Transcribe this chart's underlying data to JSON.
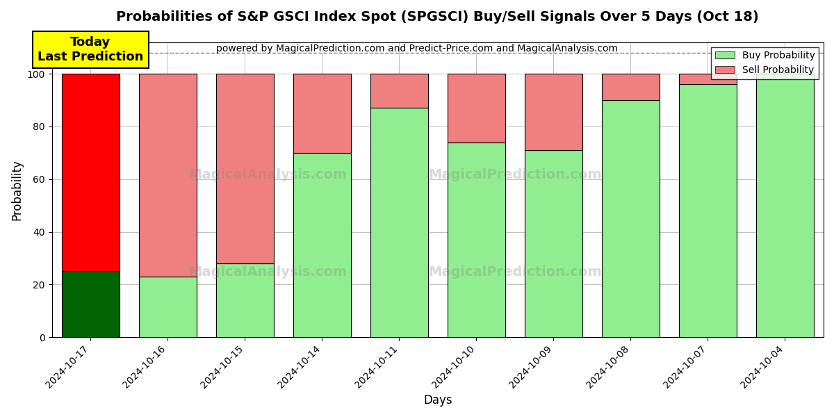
{
  "title": "Probabilities of S&P GSCI Index Spot (SPGSCI) Buy/Sell Signals Over 5 Days (Oct 18)",
  "subtitle": "powered by MagicalPrediction.com and Predict-Price.com and MagicalAnalysis.com",
  "xlabel": "Days",
  "ylabel": "Probability",
  "dates": [
    "2024-10-17",
    "2024-10-16",
    "2024-10-15",
    "2024-10-14",
    "2024-10-11",
    "2024-10-10",
    "2024-10-09",
    "2024-10-08",
    "2024-10-07",
    "2024-10-04"
  ],
  "buy_values": [
    25,
    23,
    28,
    70,
    87,
    74,
    71,
    90,
    96,
    100
  ],
  "sell_values": [
    75,
    77,
    72,
    30,
    13,
    26,
    29,
    10,
    4,
    0
  ],
  "buy_color_today": "#006400",
  "sell_color_today": "#ff0000",
  "buy_color_normal": "#90EE90",
  "sell_color_normal": "#F08080",
  "today_annotation_text": "Today\nLast Prediction",
  "today_annotation_bg": "#ffff00",
  "legend_buy_label": "Buy Probability",
  "legend_sell_label": "Sell Probability",
  "ylim": [
    0,
    112
  ],
  "dashed_line_y": 108,
  "title_fontsize": 14,
  "subtitle_fontsize": 10,
  "axis_label_fontsize": 12,
  "tick_fontsize": 10
}
